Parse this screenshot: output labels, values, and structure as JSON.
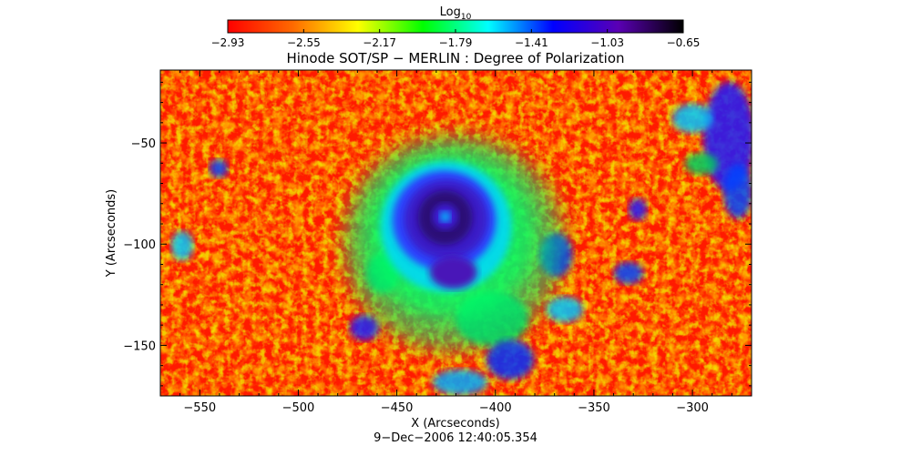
{
  "chart_data": {
    "type": "heatmap",
    "title": "Hinode SOT/SP − MERLIN : Degree of Polarization",
    "xlabel": "X (Arcseconds)",
    "ylabel": "Y (Arcseconds)",
    "date_label": "9−Dec−2006 12:40:05.354",
    "xlim": [
      -570,
      -270
    ],
    "ylim": [
      -175,
      -14
    ],
    "x_ticks": [
      -550,
      -500,
      -450,
      -400,
      -350,
      -300
    ],
    "x_tick_labels": [
      "−550",
      "−500",
      "−450",
      "−400",
      "−350",
      "−300"
    ],
    "y_ticks": [
      -50,
      -100,
      -150
    ],
    "y_tick_labels": [
      "−50",
      "−100",
      "−150"
    ],
    "colorbar": {
      "label_base": "Log",
      "label_sub": "10",
      "scale": "log10",
      "range": [
        -2.93,
        -0.65
      ],
      "ticks": [
        -2.93,
        -2.55,
        -2.17,
        -1.79,
        -1.41,
        -1.03,
        -0.65
      ],
      "tick_labels": [
        "−2.93",
        "−2.55",
        "−2.17",
        "−1.79",
        "−1.41",
        "−1.03",
        "−0.65"
      ],
      "colormap": [
        "#ff0000",
        "#ff6a00",
        "#ffff00",
        "#00ff00",
        "#00ffff",
        "#0000ff",
        "#5a00b4",
        "#000000"
      ]
    },
    "grid": false,
    "features": [
      {
        "kind": "sunspot",
        "center": [
          -425,
          -86
        ],
        "umbra_value": -0.8,
        "penumbra_value": -1.15
      }
    ]
  }
}
